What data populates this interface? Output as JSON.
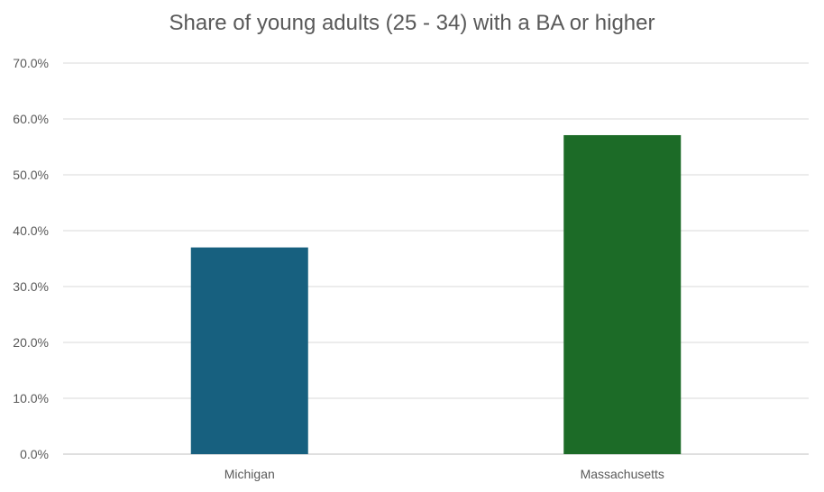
{
  "chart_data": {
    "type": "bar",
    "title": "Share of young adults (25 - 34) with a BA or higher",
    "xlabel": "",
    "ylabel": "",
    "categories": [
      "Michigan",
      "Massachusetts"
    ],
    "values": [
      37.0,
      57.1
    ],
    "colors": [
      "#17607f",
      "#1c6b27"
    ],
    "ylim": [
      0,
      70
    ],
    "yticks": [
      0,
      10,
      20,
      30,
      40,
      50,
      60,
      70
    ],
    "ytick_labels": [
      "0.0%",
      "10.0%",
      "20.0%",
      "30.0%",
      "40.0%",
      "50.0%",
      "60.0%",
      "70.0%"
    ],
    "grid": true,
    "legend": "none"
  }
}
